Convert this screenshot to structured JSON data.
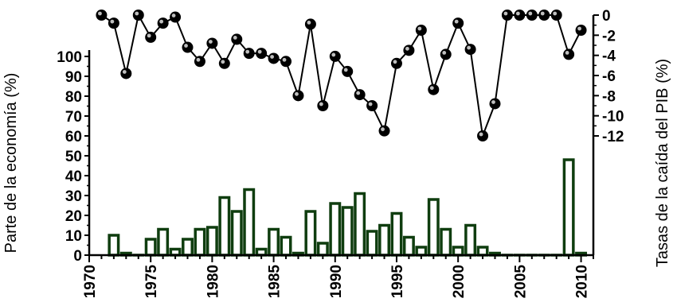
{
  "chart_data": {
    "type": "bar+line",
    "xlabel": "",
    "ylabel_left": "Parte de la economía (%)",
    "ylabel_right": "Tasas de la caída del PIB (%)",
    "x_range": [
      1970,
      2011
    ],
    "x_ticks": [
      1970,
      1975,
      1980,
      1985,
      1990,
      1995,
      2000,
      2005,
      2010
    ],
    "y_left_range": [
      0,
      100
    ],
    "y_left_ticks": [
      0,
      10,
      20,
      30,
      40,
      50,
      60,
      70,
      80,
      90,
      100
    ],
    "y_right_range": [
      -12,
      0
    ],
    "y_right_ticks": [
      0,
      -2,
      -4,
      -6,
      -8,
      -10,
      -12
    ],
    "bars": {
      "color": "#0f3d0f",
      "x": [
        1972,
        1973,
        1974,
        1975,
        1976,
        1977,
        1978,
        1979,
        1980,
        1981,
        1982,
        1983,
        1984,
        1985,
        1986,
        1987,
        1988,
        1989,
        1990,
        1991,
        1992,
        1993,
        1994,
        1995,
        1996,
        1997,
        1998,
        1999,
        2000,
        2001,
        2002,
        2003,
        2004,
        2005,
        2006,
        2007,
        2008,
        2009,
        2010
      ],
      "values": [
        10,
        1,
        0,
        8,
        13,
        3,
        8,
        13,
        14,
        29,
        22,
        33,
        3,
        13,
        9,
        1,
        22,
        6,
        26,
        24,
        31,
        12,
        15,
        21,
        9,
        4,
        28,
        13,
        4,
        15,
        4,
        1,
        0,
        0,
        0,
        0,
        0,
        48,
        1
      ]
    },
    "line": {
      "color": "#000000",
      "x": [
        1971,
        1972,
        1973,
        1974,
        1975,
        1976,
        1977,
        1978,
        1979,
        1980,
        1981,
        1982,
        1983,
        1984,
        1985,
        1986,
        1987,
        1988,
        1989,
        1990,
        1991,
        1992,
        1993,
        1994,
        1995,
        1996,
        1997,
        1998,
        1999,
        2000,
        2001,
        2002,
        2003,
        2004,
        2005,
        2006,
        2007,
        2008,
        2009,
        2010
      ],
      "values": [
        0,
        -0.8,
        -5.8,
        0,
        -2.2,
        -0.8,
        -0.2,
        -3.2,
        -4.6,
        -2.8,
        -4.8,
        -2.4,
        -3.8,
        -3.8,
        -4.3,
        -4.6,
        -8,
        -0.9,
        -9,
        -4.1,
        -5.6,
        -7.9,
        -9,
        -11.5,
        -4.8,
        -3.5,
        -1.5,
        -7.4,
        -3.9,
        -0.8,
        -3.4,
        -12,
        -8.8,
        0,
        0,
        0,
        0,
        0,
        -3.9,
        -1.5
      ]
    }
  }
}
